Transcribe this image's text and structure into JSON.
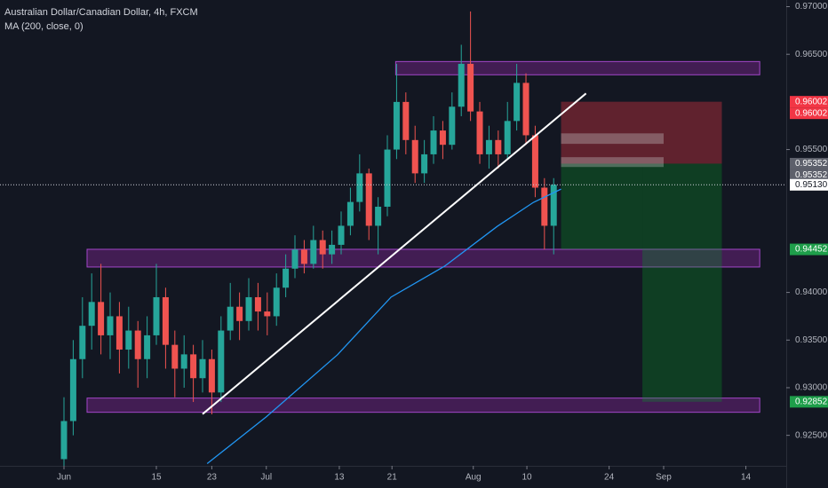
{
  "chart_data": {
    "type": "candlestick",
    "title": "Australian Dollar/Canadian Dollar, 4h, FXCM",
    "subtitle": "MA (200, close, 0)",
    "up_color": "#26a69a",
    "down_color": "#ef5350",
    "open": [
      0.9225,
      0.9265,
      0.933,
      0.9365,
      0.939,
      0.9355,
      0.9375,
      0.934,
      0.936,
      0.933,
      0.9355,
      0.9395,
      0.9345,
      0.932,
      0.9335,
      0.931,
      0.933,
      0.9295,
      0.936,
      0.9385,
      0.937,
      0.9395,
      0.938,
      0.9375,
      0.9405,
      0.9425,
      0.9445,
      0.943,
      0.9455,
      0.944,
      0.945,
      0.947,
      0.9495,
      0.9525,
      0.947,
      0.949,
      0.955,
      0.96,
      0.956,
      0.9525,
      0.9545,
      0.957,
      0.9555,
      0.9595,
      0.964,
      0.959,
      0.9545,
      0.956,
      0.9545,
      0.958,
      0.962,
      0.9565,
      0.951,
      0.947
    ],
    "high": [
      0.929,
      0.935,
      0.9395,
      0.942,
      0.943,
      0.94,
      0.939,
      0.9385,
      0.937,
      0.9375,
      0.943,
      0.9405,
      0.936,
      0.9355,
      0.9345,
      0.935,
      0.934,
      0.9375,
      0.941,
      0.94,
      0.9415,
      0.941,
      0.94,
      0.942,
      0.944,
      0.946,
      0.9455,
      0.947,
      0.9465,
      0.9465,
      0.9485,
      0.951,
      0.9545,
      0.953,
      0.95,
      0.9565,
      0.964,
      0.961,
      0.9575,
      0.956,
      0.9585,
      0.958,
      0.961,
      0.966,
      0.9695,
      0.96,
      0.9575,
      0.957,
      0.96,
      0.964,
      0.963,
      0.9575,
      0.952,
      0.952
    ],
    "low": [
      0.9218,
      0.925,
      0.931,
      0.934,
      0.9335,
      0.933,
      0.9315,
      0.932,
      0.93,
      0.931,
      0.9345,
      0.932,
      0.929,
      0.93,
      0.9285,
      0.9295,
      0.9272,
      0.9285,
      0.935,
      0.935,
      0.936,
      0.936,
      0.9355,
      0.9365,
      0.9395,
      0.9415,
      0.942,
      0.9425,
      0.9425,
      0.943,
      0.944,
      0.946,
      0.9485,
      0.9455,
      0.944,
      0.948,
      0.954,
      0.9545,
      0.9515,
      0.9515,
      0.9535,
      0.954,
      0.955,
      0.9585,
      0.958,
      0.9535,
      0.953,
      0.953,
      0.954,
      0.957,
      0.9555,
      0.95,
      0.9445,
      0.944
    ],
    "close": [
      0.9265,
      0.933,
      0.9365,
      0.939,
      0.9355,
      0.9375,
      0.934,
      0.936,
      0.933,
      0.9355,
      0.9395,
      0.9345,
      0.932,
      0.9335,
      0.931,
      0.933,
      0.9295,
      0.936,
      0.9385,
      0.937,
      0.9395,
      0.938,
      0.9375,
      0.9405,
      0.9425,
      0.9445,
      0.943,
      0.9455,
      0.944,
      0.945,
      0.947,
      0.9495,
      0.9525,
      0.947,
      0.949,
      0.955,
      0.96,
      0.956,
      0.9525,
      0.9545,
      0.957,
      0.9555,
      0.9595,
      0.964,
      0.959,
      0.9545,
      0.956,
      0.9545,
      0.958,
      0.962,
      0.9565,
      0.951,
      0.947,
      0.9513
    ],
    "ma": {
      "color": "#2196f3",
      "x": [
        15.5,
        21.9,
        29.6,
        35.4,
        41.2,
        46.9,
        50.8,
        53.8
      ],
      "values": [
        0.92203,
        0.92695,
        0.93346,
        0.93951,
        0.94276,
        0.94694,
        0.94945,
        0.95085
      ]
    },
    "trendline": {
      "color": "#ffffff",
      "x": [
        15,
        56.5
      ],
      "values": [
        0.92723,
        0.96089
      ]
    },
    "zones": [
      {
        "start": 35.9,
        "end": 75.3,
        "top": 0.96424,
        "bottom": 0.96285
      },
      {
        "start": 2.5,
        "end": 75.3,
        "top": 0.94453,
        "bottom": 0.94267
      },
      {
        "start": 2.5,
        "end": 75.3,
        "top": 0.92891,
        "bottom": 0.92742
      }
    ],
    "position": {
      "start": 53.8,
      "split": 62.6,
      "end": 71.2,
      "stop": 0.96002,
      "entry": 0.95352,
      "target1": 0.94452,
      "target2": 0.92852,
      "bands": [
        {
          "top": 0.9567,
          "bottom": 0.9556,
          "end": 64.9
        },
        {
          "top": 0.9542,
          "bottom": 0.95317,
          "end": 64.9
        }
      ]
    },
    "current": 0.9513,
    "xlim": [
      -6.923,
      78.17
    ],
    "ylim": [
      0.9218,
      0.9707
    ],
    "xticks": [
      {
        "value": 0,
        "label": "Jun"
      },
      {
        "value": 10,
        "label": "15"
      },
      {
        "value": 16,
        "label": "23"
      },
      {
        "value": 21.9,
        "label": "Jul"
      },
      {
        "value": 29.8,
        "label": "13"
      },
      {
        "value": 35.5,
        "label": "21"
      },
      {
        "value": 44.3,
        "label": "Aug"
      },
      {
        "value": 50.1,
        "label": "10"
      },
      {
        "value": 59,
        "label": "24"
      },
      {
        "value": 64.9,
        "label": "Sep"
      },
      {
        "value": 73.8,
        "label": "14"
      }
    ],
    "yticks": [
      {
        "value": 0.97,
        "label": "0.97000"
      },
      {
        "value": 0.965,
        "label": "0.96500"
      },
      {
        "value": 0.955,
        "label": "0.95500"
      },
      {
        "value": 0.94,
        "label": "0.94000"
      },
      {
        "value": 0.935,
        "label": "0.93500"
      },
      {
        "value": 0.93,
        "label": "0.93000"
      },
      {
        "value": 0.925,
        "label": "0.92500"
      }
    ],
    "price_labels": [
      {
        "value": 0.96002,
        "label": "0.96002",
        "color": "#f23645"
      },
      {
        "value": 0.96002,
        "label": "0.96002",
        "color": "#f23645"
      },
      {
        "value": 0.95352,
        "label": "0.95352",
        "color": "#5d606b"
      },
      {
        "value": 0.95352,
        "label": "0.95352",
        "color": "#5d606b"
      },
      {
        "value": 0.9513,
        "label": "0.95130",
        "color": "#ffffff"
      },
      {
        "value": 0.94452,
        "label": "0.94452",
        "color": "#1e9e4a"
      },
      {
        "value": 0.92852,
        "label": "0.92852",
        "color": "#1e9e4a"
      }
    ]
  }
}
